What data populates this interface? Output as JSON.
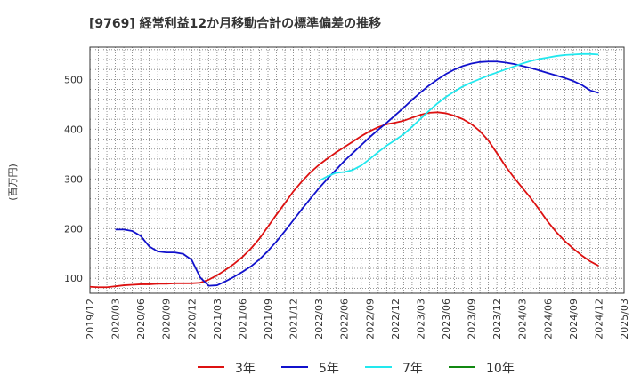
{
  "chart_data": {
    "type": "line",
    "title": "[9769]  経常利益12か月移動合計の標準偏差の推移",
    "ylabel": "(百万円)",
    "xlabel": "",
    "ylim": [
      70,
      565
    ],
    "yticks": [
      100,
      200,
      300,
      400,
      500
    ],
    "grid": true,
    "legend_position": "bottom",
    "x_ticks": [
      "2019/12",
      "2020/03",
      "2020/06",
      "2020/09",
      "2020/12",
      "2021/03",
      "2021/06",
      "2021/09",
      "2021/12",
      "2022/03",
      "2022/06",
      "2022/09",
      "2022/12",
      "2023/03",
      "2023/06",
      "2023/09",
      "2023/12",
      "2024/03",
      "2024/06",
      "2024/09",
      "2024/12",
      "2025/03"
    ],
    "series": [
      {
        "name": "3年",
        "color": "#dd1111",
        "points": [
          [
            "2019/12",
            83
          ],
          [
            "2020/01",
            82
          ],
          [
            "2020/02",
            82
          ],
          [
            "2020/03",
            84
          ],
          [
            "2020/04",
            86
          ],
          [
            "2020/05",
            87
          ],
          [
            "2020/06",
            88
          ],
          [
            "2020/07",
            88
          ],
          [
            "2020/08",
            89
          ],
          [
            "2020/09",
            89
          ],
          [
            "2020/10",
            90
          ],
          [
            "2020/11",
            90
          ],
          [
            "2020/12",
            90
          ],
          [
            "2021/01",
            91
          ],
          [
            "2021/02",
            97
          ],
          [
            "2021/03",
            106
          ],
          [
            "2021/04",
            117
          ],
          [
            "2021/05",
            129
          ],
          [
            "2021/06",
            143
          ],
          [
            "2021/07",
            160
          ],
          [
            "2021/08",
            180
          ],
          [
            "2021/09",
            204
          ],
          [
            "2021/10",
            228
          ],
          [
            "2021/11",
            251
          ],
          [
            "2021/12",
            275
          ],
          [
            "2022/01",
            295
          ],
          [
            "2022/02",
            313
          ],
          [
            "2022/03",
            328
          ],
          [
            "2022/04",
            341
          ],
          [
            "2022/05",
            353
          ],
          [
            "2022/06",
            364
          ],
          [
            "2022/07",
            375
          ],
          [
            "2022/08",
            386
          ],
          [
            "2022/09",
            396
          ],
          [
            "2022/10",
            404
          ],
          [
            "2022/11",
            410
          ],
          [
            "2022/12",
            413
          ],
          [
            "2023/01",
            417
          ],
          [
            "2023/02",
            423
          ],
          [
            "2023/03",
            429
          ],
          [
            "2023/04",
            433
          ],
          [
            "2023/05",
            434
          ],
          [
            "2023/06",
            432
          ],
          [
            "2023/07",
            427
          ],
          [
            "2023/08",
            420
          ],
          [
            "2023/09",
            410
          ],
          [
            "2023/10",
            396
          ],
          [
            "2023/11",
            377
          ],
          [
            "2023/12",
            352
          ],
          [
            "2024/01",
            326
          ],
          [
            "2024/02",
            303
          ],
          [
            "2024/03",
            282
          ],
          [
            "2024/04",
            261
          ],
          [
            "2024/05",
            238
          ],
          [
            "2024/06",
            214
          ],
          [
            "2024/07",
            193
          ],
          [
            "2024/08",
            175
          ],
          [
            "2024/09",
            160
          ],
          [
            "2024/10",
            146
          ],
          [
            "2024/11",
            134
          ],
          [
            "2024/12",
            125
          ]
        ]
      },
      {
        "name": "5年",
        "color": "#1111cc",
        "points": [
          [
            "2020/03",
            198
          ],
          [
            "2020/04",
            198
          ],
          [
            "2020/05",
            195
          ],
          [
            "2020/06",
            185
          ],
          [
            "2020/07",
            164
          ],
          [
            "2020/08",
            154
          ],
          [
            "2020/09",
            152
          ],
          [
            "2020/10",
            152
          ],
          [
            "2020/11",
            149
          ],
          [
            "2020/12",
            137
          ],
          [
            "2021/01",
            102
          ],
          [
            "2021/02",
            85
          ],
          [
            "2021/03",
            86
          ],
          [
            "2021/04",
            94
          ],
          [
            "2021/05",
            103
          ],
          [
            "2021/06",
            113
          ],
          [
            "2021/07",
            124
          ],
          [
            "2021/08",
            138
          ],
          [
            "2021/09",
            155
          ],
          [
            "2021/10",
            174
          ],
          [
            "2021/11",
            195
          ],
          [
            "2021/12",
            217
          ],
          [
            "2022/01",
            239
          ],
          [
            "2022/02",
            260
          ],
          [
            "2022/03",
            281
          ],
          [
            "2022/04",
            300
          ],
          [
            "2022/05",
            318
          ],
          [
            "2022/06",
            336
          ],
          [
            "2022/07",
            352
          ],
          [
            "2022/08",
            368
          ],
          [
            "2022/09",
            384
          ],
          [
            "2022/10",
            399
          ],
          [
            "2022/11",
            413
          ],
          [
            "2022/12",
            428
          ],
          [
            "2023/01",
            443
          ],
          [
            "2023/02",
            459
          ],
          [
            "2023/03",
            474
          ],
          [
            "2023/04",
            488
          ],
          [
            "2023/05",
            500
          ],
          [
            "2023/06",
            511
          ],
          [
            "2023/07",
            520
          ],
          [
            "2023/08",
            527
          ],
          [
            "2023/09",
            532
          ],
          [
            "2023/10",
            535
          ],
          [
            "2023/11",
            536
          ],
          [
            "2023/12",
            536
          ],
          [
            "2024/01",
            534
          ],
          [
            "2024/02",
            531
          ],
          [
            "2024/03",
            527
          ],
          [
            "2024/04",
            523
          ],
          [
            "2024/05",
            518
          ],
          [
            "2024/06",
            513
          ],
          [
            "2024/07",
            508
          ],
          [
            "2024/08",
            503
          ],
          [
            "2024/09",
            497
          ],
          [
            "2024/10",
            489
          ],
          [
            "2024/11",
            478
          ],
          [
            "2024/12",
            473
          ]
        ]
      },
      {
        "name": "7年",
        "color": "#22e8ee",
        "points": [
          [
            "2022/03",
            296
          ],
          [
            "2022/04",
            305
          ],
          [
            "2022/05",
            312
          ],
          [
            "2022/06",
            314
          ],
          [
            "2022/07",
            318
          ],
          [
            "2022/08",
            327
          ],
          [
            "2022/09",
            340
          ],
          [
            "2022/10",
            354
          ],
          [
            "2022/11",
            367
          ],
          [
            "2022/12",
            378
          ],
          [
            "2023/01",
            390
          ],
          [
            "2023/02",
            405
          ],
          [
            "2023/03",
            421
          ],
          [
            "2023/04",
            437
          ],
          [
            "2023/05",
            452
          ],
          [
            "2023/06",
            465
          ],
          [
            "2023/07",
            476
          ],
          [
            "2023/08",
            486
          ],
          [
            "2023/09",
            494
          ],
          [
            "2023/10",
            501
          ],
          [
            "2023/11",
            508
          ],
          [
            "2023/12",
            514
          ],
          [
            "2024/01",
            520
          ],
          [
            "2024/02",
            526
          ],
          [
            "2024/03",
            532
          ],
          [
            "2024/04",
            537
          ],
          [
            "2024/05",
            541
          ],
          [
            "2024/06",
            544
          ],
          [
            "2024/07",
            547
          ],
          [
            "2024/08",
            549
          ],
          [
            "2024/09",
            550
          ],
          [
            "2024/10",
            551
          ],
          [
            "2024/11",
            551
          ],
          [
            "2024/12",
            550
          ]
        ]
      },
      {
        "name": "10年",
        "color": "#118811",
        "points": []
      }
    ]
  }
}
